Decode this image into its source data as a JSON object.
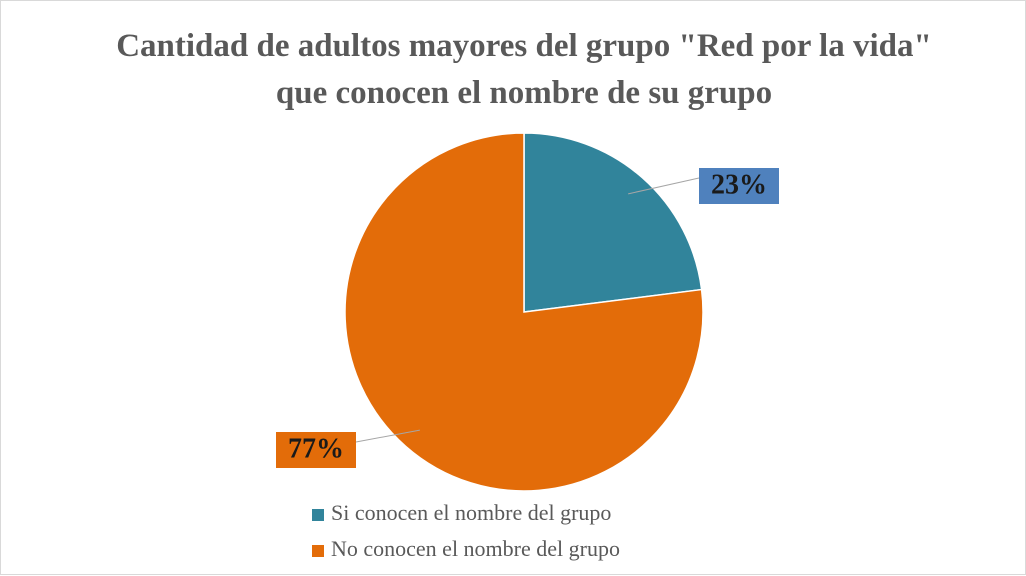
{
  "chart_data": {
    "type": "pie",
    "title": "Cantidad de adultos mayores del grupo \"Red por la vida\"  que conocen el nombre de su grupo",
    "categories": [
      "Si conocen el nombre del grupo",
      "No conocen el nombre del grupo"
    ],
    "values": [
      23,
      77
    ],
    "value_labels": [
      "23%",
      "77%"
    ],
    "colors": [
      "#31849b",
      "#e36c09"
    ],
    "label_colors": [
      "#4f81bd",
      "#e36c09"
    ],
    "legend": "bottom"
  }
}
